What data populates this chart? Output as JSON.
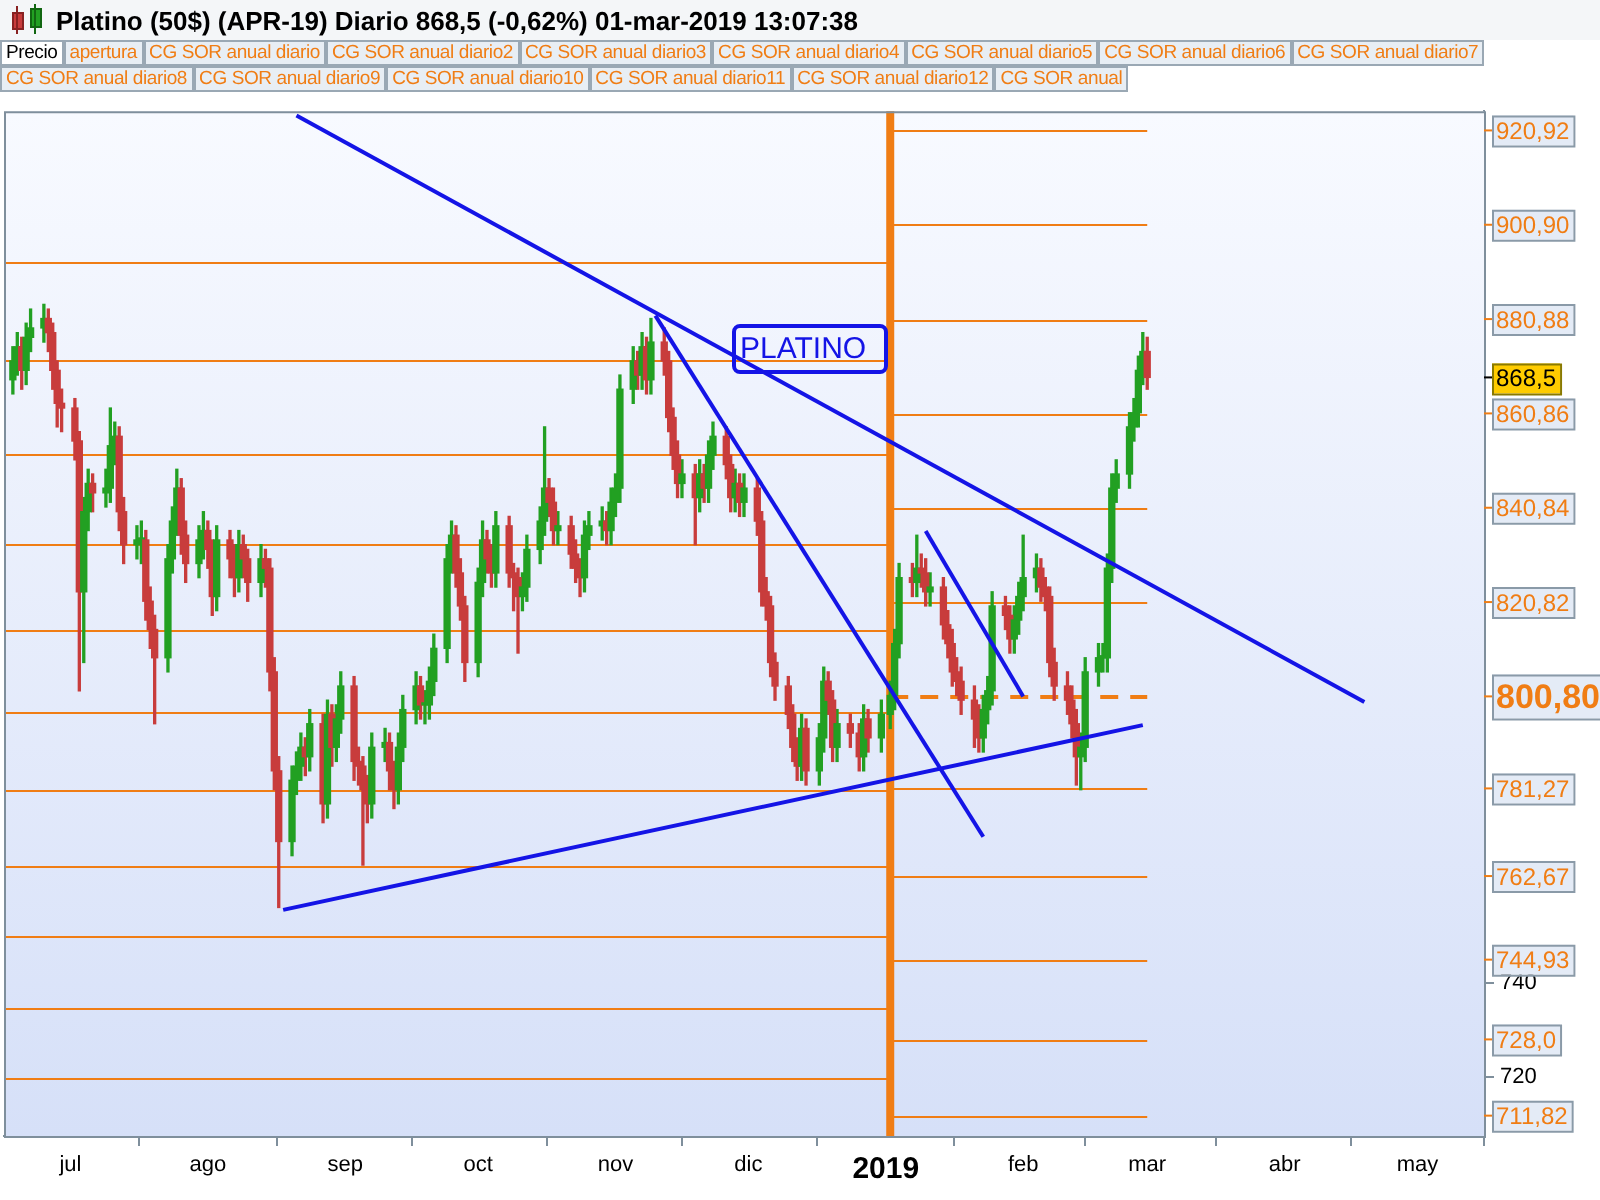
{
  "chart_data": {
    "type": "candlestick",
    "title": "Platino (50$) (APR-19)   Diario   868,5 (-0,62%)   01-mar-2019 13:07:38",
    "xlim": [
      "2018-06-16",
      "2019-05-16"
    ],
    "xticks": [
      {
        "value": "2018-07-01",
        "label": "jul"
      },
      {
        "value": "2018-08-01",
        "label": "ago"
      },
      {
        "value": "2018-09-01",
        "label": "sep"
      },
      {
        "value": "2018-10-01",
        "label": "oct"
      },
      {
        "value": "2018-11-01",
        "label": "nov"
      },
      {
        "value": "2018-12-01",
        "label": "dic"
      },
      {
        "value": "2019-01-01",
        "label": "2019"
      },
      {
        "value": "2019-02-01",
        "label": "feb"
      },
      {
        "value": "2019-03-01",
        "label": "mar"
      },
      {
        "value": "2019-04-01",
        "label": "abr"
      },
      {
        "value": "2019-05-01",
        "label": "may"
      }
    ],
    "ylim": [
      707.5,
      925
    ],
    "yticks": [
      720,
      740
    ],
    "series": [
      {
        "colors": [
          "#22a022",
          "#22a022",
          "#c83c3c",
          "#22a022",
          "#22a022",
          "#22a022",
          "#c83c3c",
          "#c83c3c",
          "#c83c3c",
          "#c83c3c",
          "#c83c3c",
          "#c83c3c",
          "#22a022",
          "#22a022",
          "#c83c3c",
          "#22a022",
          "#22a022",
          "#22a022",
          "#c83c3c",
          "#c83c3c",
          "#22a022",
          "#22a022",
          "#c83c3c",
          "#c83c3c",
          "#c83c3c",
          "#22a022",
          "#22a022",
          "#22a022",
          "#c83c3c",
          "#c83c3c",
          "#22a022",
          "#22a022",
          "#c83c3c",
          "#c83c3c",
          "#22a022",
          "#c83c3c",
          "#c83c3c",
          "#22a022",
          "#c83c3c",
          "#c83c3c",
          "#22a022",
          "#c83c3c",
          "#c83c3c",
          "#c83c3c",
          "#c83c3c",
          "#22a022",
          "#22a022",
          "#22a022",
          "#c83c3c",
          "#22a022",
          "#c83c3c",
          "#22a022",
          "#c83c3c",
          "#22a022",
          "#22a022",
          "#c83c3c",
          "#c83c3c",
          "#c83c3c",
          "#c83c3c",
          "#22a022",
          "#22a022",
          "#c83c3c",
          "#c83c3c",
          "#22a022",
          "#22a022",
          "#22a022",
          "#c83c3c",
          "#22a022",
          "#22a022",
          "#22a022",
          "#22a022",
          "#22a022",
          "#c83c3c",
          "#c83c3c",
          "#c83c3c",
          "#22a022",
          "#22a022",
          "#c83c3c",
          "#c83c3c",
          "#22a022",
          "#c83c3c",
          "#c83c3c",
          "#c83c3c",
          "#22a022",
          "#22a022",
          "#22a022",
          "#22a022",
          "#c83c3c",
          "#c83c3c",
          "#22a022",
          "#c83c3c",
          "#c83c3c",
          "#c83c3c",
          "#22a022",
          "#22a022",
          "#22a022",
          "#c83c3c",
          "#22a022",
          "#22a022",
          "#22a022",
          "#22a022",
          "#c83c3c",
          "#22a022",
          "#c83c3c",
          "#22a022",
          "#c83c3c",
          "#c83c3c",
          "#c83c3c",
          "#c83c3c",
          "#22a022",
          "#c83c3c",
          "#22a022",
          "#c83c3c",
          "#22a022",
          "#22a022",
          "#c83c3c",
          "#c83c3c",
          "#22a022",
          "#c83c3c",
          "#22a022",
          "#c83c3c",
          "#c83c3c",
          "#c83c3c",
          "#c83c3c",
          "#c83c3c",
          "#c83c3c",
          "#c83c3c",
          "#c83c3c",
          "#22a022",
          "#c83c3c",
          "#22a022",
          "#22a022",
          "#c83c3c",
          "#c83c3c",
          "#22a022",
          "#c83c3c",
          "#c83c3c",
          "#22a022",
          "#c83c3c",
          "#22a022",
          "#22a022",
          "#22a022",
          "#22a022",
          "#c83c3c",
          "#22a022",
          "#c83c3c",
          "#c83c3c",
          "#22a022",
          "#c83c3c",
          "#c83c3c",
          "#c83c3c",
          "#c83c3c",
          "#c83c3c",
          "#c83c3c",
          "#c83c3c",
          "#22a022",
          "#22a022",
          "#22a022",
          "#c83c3c",
          "#c83c3c",
          "#22a022",
          "#22a022",
          "#22a022",
          "#22a022",
          "#c83c3c",
          "#c83c3c",
          "#c83c3c",
          "#c83c3c",
          "#c83c3c",
          "#c83c3c",
          "#c83c3c",
          "#22a022",
          "#22a022",
          "#22a022",
          "#22a022",
          "#22a022",
          "#22a022",
          "#22a022",
          "#22a022",
          "#22a022",
          "#22a022",
          "#22a022",
          "#c83c3c"
        ],
        "x": [
          "2018-06-18",
          "2018-06-19",
          "2018-06-20",
          "2018-06-21",
          "2018-06-22",
          "2018-06-25",
          "2018-06-26",
          "2018-06-27",
          "2018-06-28",
          "2018-06-29",
          "2018-07-02",
          "2018-07-03",
          "2018-07-04",
          "2018-07-05",
          "2018-07-06",
          "2018-07-09",
          "2018-07-10",
          "2018-07-11",
          "2018-07-12",
          "2018-07-13",
          "2018-07-16",
          "2018-07-17",
          "2018-07-18",
          "2018-07-19",
          "2018-07-20",
          "2018-07-23",
          "2018-07-24",
          "2018-07-25",
          "2018-07-26",
          "2018-07-27",
          "2018-07-30",
          "2018-07-31",
          "2018-08-01",
          "2018-08-02",
          "2018-08-03",
          "2018-08-06",
          "2018-08-07",
          "2018-08-08",
          "2018-08-09",
          "2018-08-10",
          "2018-08-13",
          "2018-08-14",
          "2018-08-15",
          "2018-08-16",
          "2018-08-17",
          "2018-08-20",
          "2018-08-21",
          "2018-08-22",
          "2018-08-23",
          "2018-08-24",
          "2018-08-27",
          "2018-08-28",
          "2018-08-29",
          "2018-08-30",
          "2018-08-31",
          "2018-09-03",
          "2018-09-04",
          "2018-09-05",
          "2018-09-06",
          "2018-09-07",
          "2018-09-10",
          "2018-09-11",
          "2018-09-12",
          "2018-09-13",
          "2018-09-14",
          "2018-09-17",
          "2018-09-18",
          "2018-09-19",
          "2018-09-20",
          "2018-09-21",
          "2018-09-24",
          "2018-09-25",
          "2018-09-26",
          "2018-09-27",
          "2018-09-28",
          "2018-10-01",
          "2018-10-02",
          "2018-10-03",
          "2018-10-04",
          "2018-10-05",
          "2018-10-08",
          "2018-10-09",
          "2018-10-10",
          "2018-10-11",
          "2018-10-12",
          "2018-10-15",
          "2018-10-16",
          "2018-10-17",
          "2018-10-18",
          "2018-10-19",
          "2018-10-22",
          "2018-10-23",
          "2018-10-24",
          "2018-10-25",
          "2018-10-26",
          "2018-10-29",
          "2018-10-30",
          "2018-10-31",
          "2018-11-01",
          "2018-11-02",
          "2018-11-05",
          "2018-11-06",
          "2018-11-07",
          "2018-11-08",
          "2018-11-09",
          "2018-11-12",
          "2018-11-13",
          "2018-11-14",
          "2018-11-15",
          "2018-11-16",
          "2018-11-19",
          "2018-11-20",
          "2018-11-21",
          "2018-11-22",
          "2018-11-23",
          "2018-11-26",
          "2018-11-27",
          "2018-11-28",
          "2018-11-29",
          "2018-11-30",
          "2018-12-03",
          "2018-12-04",
          "2018-12-05",
          "2018-12-06",
          "2018-12-07",
          "2018-12-10",
          "2018-12-11",
          "2018-12-12",
          "2018-12-13",
          "2018-12-14",
          "2018-12-17",
          "2018-12-18",
          "2018-12-19",
          "2018-12-20",
          "2018-12-21",
          "2018-12-24",
          "2018-12-26",
          "2018-12-27",
          "2018-12-28",
          "2018-12-31",
          "2019-01-02",
          "2019-01-03",
          "2019-01-04",
          "2019-01-07",
          "2019-01-08",
          "2019-01-09",
          "2019-01-10",
          "2019-01-11",
          "2019-01-14",
          "2019-01-15",
          "2019-01-16",
          "2019-01-17",
          "2019-01-18",
          "2019-01-21",
          "2019-01-22",
          "2019-01-23",
          "2019-01-24",
          "2019-01-25",
          "2019-01-28",
          "2019-01-29",
          "2019-01-30",
          "2019-01-31",
          "2019-02-01",
          "2019-02-04",
          "2019-02-05",
          "2019-02-06",
          "2019-02-07",
          "2019-02-08",
          "2019-02-11",
          "2019-02-12",
          "2019-02-13",
          "2019-02-14",
          "2019-02-15",
          "2019-02-18",
          "2019-02-19",
          "2019-02-20",
          "2019-02-21",
          "2019-02-22",
          "2019-02-25",
          "2019-02-26",
          "2019-02-27",
          "2019-02-28",
          "2019-03-01"
        ],
        "ohlc": [
          [
            868,
            875,
            865,
            872
          ],
          [
            872,
            878,
            869,
            875
          ],
          [
            875,
            877,
            866,
            870
          ],
          [
            870,
            880,
            867,
            877
          ],
          [
            877,
            883,
            874,
            879
          ],
          [
            879,
            884,
            876,
            881
          ],
          [
            881,
            883,
            874,
            878
          ],
          [
            878,
            880,
            866,
            870
          ],
          [
            870,
            872,
            858,
            863
          ],
          [
            863,
            866,
            857,
            862
          ],
          [
            862,
            864,
            851,
            855
          ],
          [
            855,
            857,
            802,
            823
          ],
          [
            823,
            843,
            808,
            840
          ],
          [
            840,
            849,
            836,
            846
          ],
          [
            846,
            848,
            840,
            844
          ],
          [
            844,
            849,
            841,
            845
          ],
          [
            845,
            862,
            842,
            854
          ],
          [
            854,
            859,
            850,
            856
          ],
          [
            856,
            858,
            836,
            840
          ],
          [
            840,
            843,
            829,
            833
          ],
          [
            833,
            837,
            830,
            834
          ],
          [
            834,
            838,
            829,
            834
          ],
          [
            834,
            836,
            817,
            821
          ],
          [
            821,
            824,
            811,
            815
          ],
          [
            815,
            818,
            795,
            809
          ],
          [
            809,
            833,
            806,
            830
          ],
          [
            830,
            841,
            827,
            838
          ],
          [
            838,
            849,
            835,
            845
          ],
          [
            845,
            847,
            831,
            835
          ],
          [
            835,
            838,
            825,
            829
          ],
          [
            829,
            837,
            826,
            834
          ],
          [
            834,
            840,
            830,
            836
          ],
          [
            836,
            838,
            828,
            832
          ],
          [
            832,
            834,
            818,
            822
          ],
          [
            822,
            837,
            819,
            834
          ],
          [
            834,
            836,
            826,
            830
          ],
          [
            830,
            833,
            822,
            826
          ],
          [
            826,
            836,
            823,
            833
          ],
          [
            833,
            835,
            826,
            830
          ],
          [
            830,
            832,
            821,
            825
          ],
          [
            825,
            833,
            822,
            830
          ],
          [
            830,
            832,
            824,
            828
          ],
          [
            828,
            830,
            802,
            806
          ],
          [
            806,
            809,
            781,
            785
          ],
          [
            785,
            788,
            756,
            770
          ],
          [
            770,
            786,
            767,
            783
          ],
          [
            783,
            789,
            780,
            786
          ],
          [
            786,
            793,
            783,
            790
          ],
          [
            790,
            792,
            784,
            788
          ],
          [
            788,
            798,
            785,
            795
          ],
          [
            795,
            797,
            774,
            778
          ],
          [
            778,
            800,
            775,
            797
          ],
          [
            797,
            799,
            786,
            790
          ],
          [
            790,
            799,
            787,
            796
          ],
          [
            796,
            806,
            793,
            803
          ],
          [
            803,
            805,
            783,
            787
          ],
          [
            787,
            790,
            782,
            786
          ],
          [
            786,
            788,
            765,
            781
          ],
          [
            781,
            784,
            774,
            778
          ],
          [
            778,
            793,
            775,
            790
          ],
          [
            790,
            794,
            787,
            791
          ],
          [
            791,
            793,
            781,
            785
          ],
          [
            785,
            787,
            777,
            781
          ],
          [
            781,
            793,
            778,
            790
          ],
          [
            790,
            801,
            787,
            798
          ],
          [
            798,
            806,
            795,
            803
          ],
          [
            803,
            805,
            796,
            799
          ],
          [
            799,
            802,
            795,
            799
          ],
          [
            799,
            807,
            796,
            804
          ],
          [
            804,
            814,
            801,
            811
          ],
          [
            811,
            833,
            808,
            830
          ],
          [
            830,
            838,
            827,
            835
          ],
          [
            835,
            837,
            824,
            827
          ],
          [
            827,
            830,
            817,
            820
          ],
          [
            820,
            822,
            804,
            808
          ],
          [
            808,
            828,
            805,
            825
          ],
          [
            825,
            838,
            822,
            834
          ],
          [
            834,
            836,
            827,
            830
          ],
          [
            830,
            833,
            824,
            827
          ],
          [
            827,
            840,
            824,
            837
          ],
          [
            837,
            839,
            824,
            827
          ],
          [
            827,
            829,
            819,
            826
          ],
          [
            826,
            828,
            810,
            822
          ],
          [
            822,
            827,
            819,
            824
          ],
          [
            824,
            835,
            821,
            832
          ],
          [
            832,
            841,
            829,
            838
          ],
          [
            838,
            858,
            835,
            845
          ],
          [
            845,
            847,
            839,
            842
          ],
          [
            842,
            845,
            833,
            836
          ],
          [
            836,
            840,
            833,
            837
          ],
          [
            837,
            839,
            828,
            831
          ],
          [
            831,
            834,
            825,
            828
          ],
          [
            828,
            830,
            822,
            826
          ],
          [
            826,
            838,
            823,
            835
          ],
          [
            835,
            840,
            832,
            837
          ],
          [
            837,
            841,
            834,
            838
          ],
          [
            838,
            840,
            833,
            836
          ],
          [
            836,
            845,
            833,
            842
          ],
          [
            842,
            848,
            839,
            845
          ],
          [
            845,
            869,
            842,
            866
          ],
          [
            866,
            875,
            863,
            872
          ],
          [
            872,
            874,
            866,
            869
          ],
          [
            869,
            878,
            866,
            875
          ],
          [
            875,
            877,
            865,
            868
          ],
          [
            868,
            881,
            865,
            876
          ],
          [
            876,
            879,
            869,
            872
          ],
          [
            872,
            874,
            857,
            860
          ],
          [
            860,
            862,
            849,
            852
          ],
          [
            852,
            855,
            843,
            846
          ],
          [
            846,
            851,
            843,
            848
          ],
          [
            848,
            850,
            833,
            843
          ],
          [
            843,
            851,
            840,
            848
          ],
          [
            848,
            850,
            842,
            845
          ],
          [
            845,
            855,
            842,
            852
          ],
          [
            852,
            859,
            849,
            856
          ],
          [
            856,
            858,
            847,
            850
          ],
          [
            850,
            852,
            840,
            843
          ],
          [
            843,
            849,
            840,
            846
          ],
          [
            846,
            848,
            839,
            842
          ],
          [
            842,
            848,
            839,
            845
          ],
          [
            845,
            847,
            835,
            838
          ],
          [
            838,
            840,
            820,
            823
          ],
          [
            823,
            826,
            817,
            820
          ],
          [
            820,
            822,
            805,
            808
          ],
          [
            808,
            810,
            800,
            803
          ],
          [
            803,
            805,
            794,
            797
          ],
          [
            797,
            799,
            787,
            790
          ],
          [
            790,
            792,
            783,
            786
          ],
          [
            786,
            797,
            783,
            794
          ],
          [
            794,
            796,
            782,
            785
          ],
          [
            785,
            795,
            782,
            792
          ],
          [
            792,
            807,
            789,
            804
          ],
          [
            804,
            806,
            797,
            800
          ],
          [
            800,
            802,
            787,
            790
          ],
          [
            790,
            798,
            787,
            795
          ],
          [
            795,
            797,
            790,
            793
          ],
          [
            793,
            795,
            785,
            788
          ],
          [
            788,
            799,
            785,
            796
          ],
          [
            796,
            798,
            789,
            792
          ],
          [
            792,
            800,
            789,
            797
          ],
          [
            797,
            804,
            794,
            801
          ],
          [
            801,
            815,
            798,
            812
          ],
          [
            812,
            829,
            809,
            826
          ],
          [
            826,
            829,
            822,
            825
          ],
          [
            825,
            835,
            822,
            828
          ],
          [
            828,
            831,
            824,
            827
          ],
          [
            827,
            830,
            820,
            823
          ],
          [
            823,
            827,
            820,
            824
          ],
          [
            824,
            826,
            813,
            816
          ],
          [
            816,
            819,
            809,
            812
          ],
          [
            812,
            815,
            803,
            806
          ],
          [
            806,
            809,
            801,
            804
          ],
          [
            804,
            807,
            797,
            800
          ],
          [
            800,
            803,
            790,
            796
          ],
          [
            796,
            799,
            789,
            792
          ],
          [
            792,
            801,
            789,
            798
          ],
          [
            798,
            805,
            795,
            802
          ],
          [
            802,
            823,
            799,
            820
          ],
          [
            820,
            822,
            815,
            818
          ],
          [
            818,
            820,
            810,
            813
          ],
          [
            813,
            820,
            810,
            817
          ],
          [
            817,
            825,
            814,
            822
          ],
          [
            822,
            835,
            819,
            826
          ],
          [
            826,
            831,
            823,
            828
          ],
          [
            828,
            830,
            821,
            824
          ],
          [
            824,
            826,
            819,
            822
          ],
          [
            822,
            824,
            805,
            808
          ],
          [
            808,
            811,
            800,
            803
          ],
          [
            803,
            806,
            797,
            800
          ],
          [
            800,
            803,
            792,
            795
          ],
          [
            795,
            798,
            782,
            788
          ],
          [
            788,
            793,
            781,
            790
          ],
          [
            790,
            809,
            787,
            806
          ],
          [
            806,
            812,
            803,
            809
          ],
          [
            809,
            812,
            806,
            809
          ],
          [
            809,
            831,
            806,
            828
          ],
          [
            828,
            848,
            825,
            845
          ],
          [
            845,
            851,
            842,
            848
          ],
          [
            848,
            861,
            845,
            858
          ],
          [
            858,
            864,
            855,
            861
          ],
          [
            861,
            873,
            858,
            870
          ],
          [
            870,
            878,
            867,
            874
          ],
          [
            874,
            877,
            866,
            868.5
          ]
        ]
      },
      {
        "type": "line",
        "color": "#1414e6",
        "x": [
          "2018-08-21",
          "2019-04-19"
        ],
        "values": [
          924.1,
          799.6
        ]
      },
      {
        "type": "line",
        "color": "#1414e6",
        "x": [
          "2018-11-10",
          "2019-01-23"
        ],
        "values": [
          881.6,
          771
        ]
      },
      {
        "type": "line",
        "color": "#1414e6",
        "x": [
          "2018-08-18",
          "2019-02-28"
        ],
        "values": [
          755.5,
          794.7
        ]
      },
      {
        "type": "line",
        "color": "#1414e6",
        "x": [
          "2019-01-10",
          "2019-02-01"
        ],
        "values": [
          835.9,
          800.8
        ]
      }
    ],
    "ref_lines": [
      {
        "axis": "x",
        "value": "2019-01-02",
        "color": "#f07d14"
      },
      {
        "axis": "y",
        "value": 920.92,
        "label": "920,92",
        "color": "#f07d14"
      },
      {
        "axis": "y",
        "value": 900.9,
        "label": "900,90",
        "color": "#f07d14"
      },
      {
        "axis": "y",
        "value": 880.88,
        "label": "880,88",
        "color": "#f07d14"
      },
      {
        "axis": "y",
        "value": 860.86,
        "label": "860,86",
        "color": "#f07d14"
      },
      {
        "axis": "y",
        "value": 840.84,
        "label": "840,84",
        "color": "#f07d14"
      },
      {
        "axis": "y",
        "value": 820.82,
        "label": "820,82",
        "color": "#f07d14"
      },
      {
        "axis": "y",
        "value": 800.8,
        "label": "800,80",
        "color": "#f07d14",
        "line_style": "dashed"
      },
      {
        "axis": "y",
        "value": 781.27,
        "label": "781,27",
        "color": "#f07d14"
      },
      {
        "axis": "y",
        "value": 762.67,
        "label": "762,67",
        "color": "#f07d14"
      },
      {
        "axis": "y",
        "value": 744.93,
        "label": "744,93",
        "color": "#f07d14"
      },
      {
        "axis": "y",
        "value": 728.0,
        "label": "728,0",
        "color": "#f07d14"
      },
      {
        "axis": "y",
        "value": 711.82,
        "label": "711,82",
        "color": "#f07d14"
      },
      {
        "axis": "y",
        "value": 893.1,
        "color": "#f07d14"
      },
      {
        "axis": "y",
        "value": 872.2,
        "color": "#f07d14"
      },
      {
        "axis": "y",
        "value": 852.2,
        "color": "#f07d14"
      },
      {
        "axis": "y",
        "value": 833.1,
        "color": "#f07d14"
      },
      {
        "axis": "y",
        "value": 815.1,
        "color": "#f07d14"
      },
      {
        "axis": "y",
        "value": 797.6,
        "color": "#f07d14"
      },
      {
        "axis": "y",
        "value": 780.8,
        "color": "#f07d14"
      },
      {
        "axis": "y",
        "value": 764.9,
        "color": "#f07d14"
      },
      {
        "axis": "y",
        "value": 749.8,
        "color": "#f07d14"
      },
      {
        "axis": "y",
        "value": 734.7,
        "color": "#f07d14"
      },
      {
        "axis": "y",
        "value": 720,
        "color": "#f07d14"
      }
    ],
    "annotations": [
      "PLATINO",
      "868,5",
      "Precio",
      "apertura",
      "CG SOR anual diario",
      "CG SOR anual diario2",
      "CG SOR anual diario3",
      "CG SOR anual diario4",
      "CG SOR anual diario5",
      "CG SOR anual diario6",
      "CG SOR anual diario7",
      "CG SOR anual diario8",
      "CG SOR anual diario9",
      "CG SOR anual diario10",
      "CG SOR anual diario11",
      "CG SOR anual diario12",
      "CG SOR anual"
    ]
  }
}
